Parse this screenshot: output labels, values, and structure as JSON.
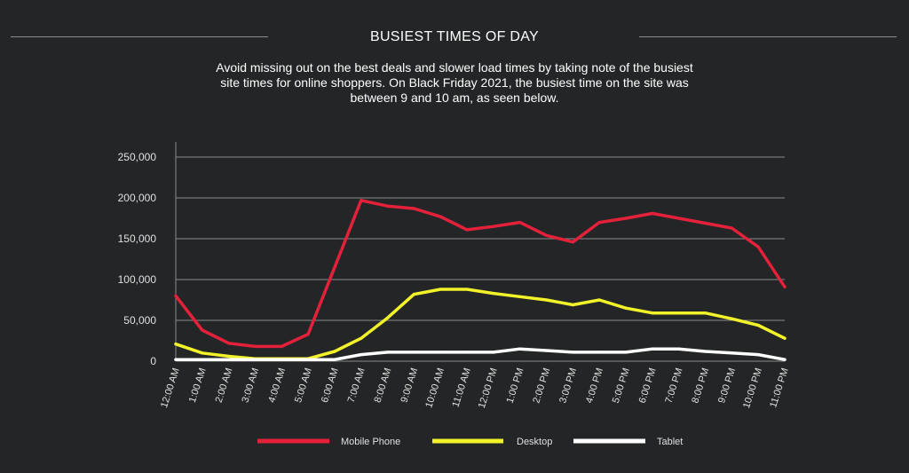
{
  "header": {
    "title": "BUSIEST TIMES OF DAY",
    "subtitle": "Avoid missing out on the best deals and slower load times by taking note of the busiest site times for online shoppers. On Black Friday 2021, the busiest time on the site was between 9 and 10 am, as seen below."
  },
  "colors": {
    "background": "#232526",
    "grid": "#8a8c8d",
    "mobile": "#e3213b",
    "desktop": "#f2f22a",
    "tablet": "#ffffff"
  },
  "chart_data": {
    "type": "line",
    "title": "BUSIEST TIMES OF DAY",
    "xlabel": "",
    "ylabel": "",
    "ylim": [
      0,
      250000
    ],
    "yticks": [
      0,
      50000,
      100000,
      150000,
      200000,
      250000
    ],
    "ytick_labels": [
      "0",
      "50,000",
      "100,000",
      "150,000",
      "200,000",
      "250,000"
    ],
    "grid": true,
    "legend": "bottom",
    "categories": [
      "12:00 AM",
      "1:00 AM",
      "2:00 AM",
      "3:00 AM",
      "4:00 AM",
      "5:00 AM",
      "6:00 AM",
      "7:00 AM",
      "8:00 AM",
      "9:00 AM",
      "10:00 AM",
      "11:00 AM",
      "12:00 PM",
      "1:00 PM",
      "2:00 PM",
      "3:00 PM",
      "4:00 PM",
      "5:00 PM",
      "6:00 PM",
      "7:00 PM",
      "8:00 PM",
      "9:00 PM",
      "10:00 PM",
      "11:00 PM"
    ],
    "series": [
      {
        "name": "Mobile Phone",
        "color": "#e3213b",
        "values": [
          80000,
          38000,
          22000,
          18000,
          18000,
          33000,
          115000,
          197000,
          190000,
          187000,
          177000,
          161000,
          165000,
          170000,
          154000,
          146000,
          170000,
          175000,
          181000,
          175000,
          169000,
          163000,
          140000,
          91000
        ]
      },
      {
        "name": "Desktop",
        "color": "#f2f22a",
        "values": [
          21000,
          10000,
          6000,
          3000,
          3000,
          3000,
          12000,
          28000,
          53000,
          82000,
          88000,
          88000,
          83000,
          79000,
          75000,
          69000,
          75000,
          65000,
          59000,
          59000,
          59000,
          52000,
          44000,
          28000
        ]
      },
      {
        "name": "Tablet",
        "color": "#ffffff",
        "values": [
          2000,
          2000,
          2000,
          2000,
          2000,
          2000,
          2000,
          8000,
          11000,
          11000,
          11000,
          11000,
          11000,
          15000,
          13000,
          11000,
          11000,
          11000,
          15000,
          15000,
          12000,
          10000,
          8000,
          2000
        ]
      }
    ]
  }
}
